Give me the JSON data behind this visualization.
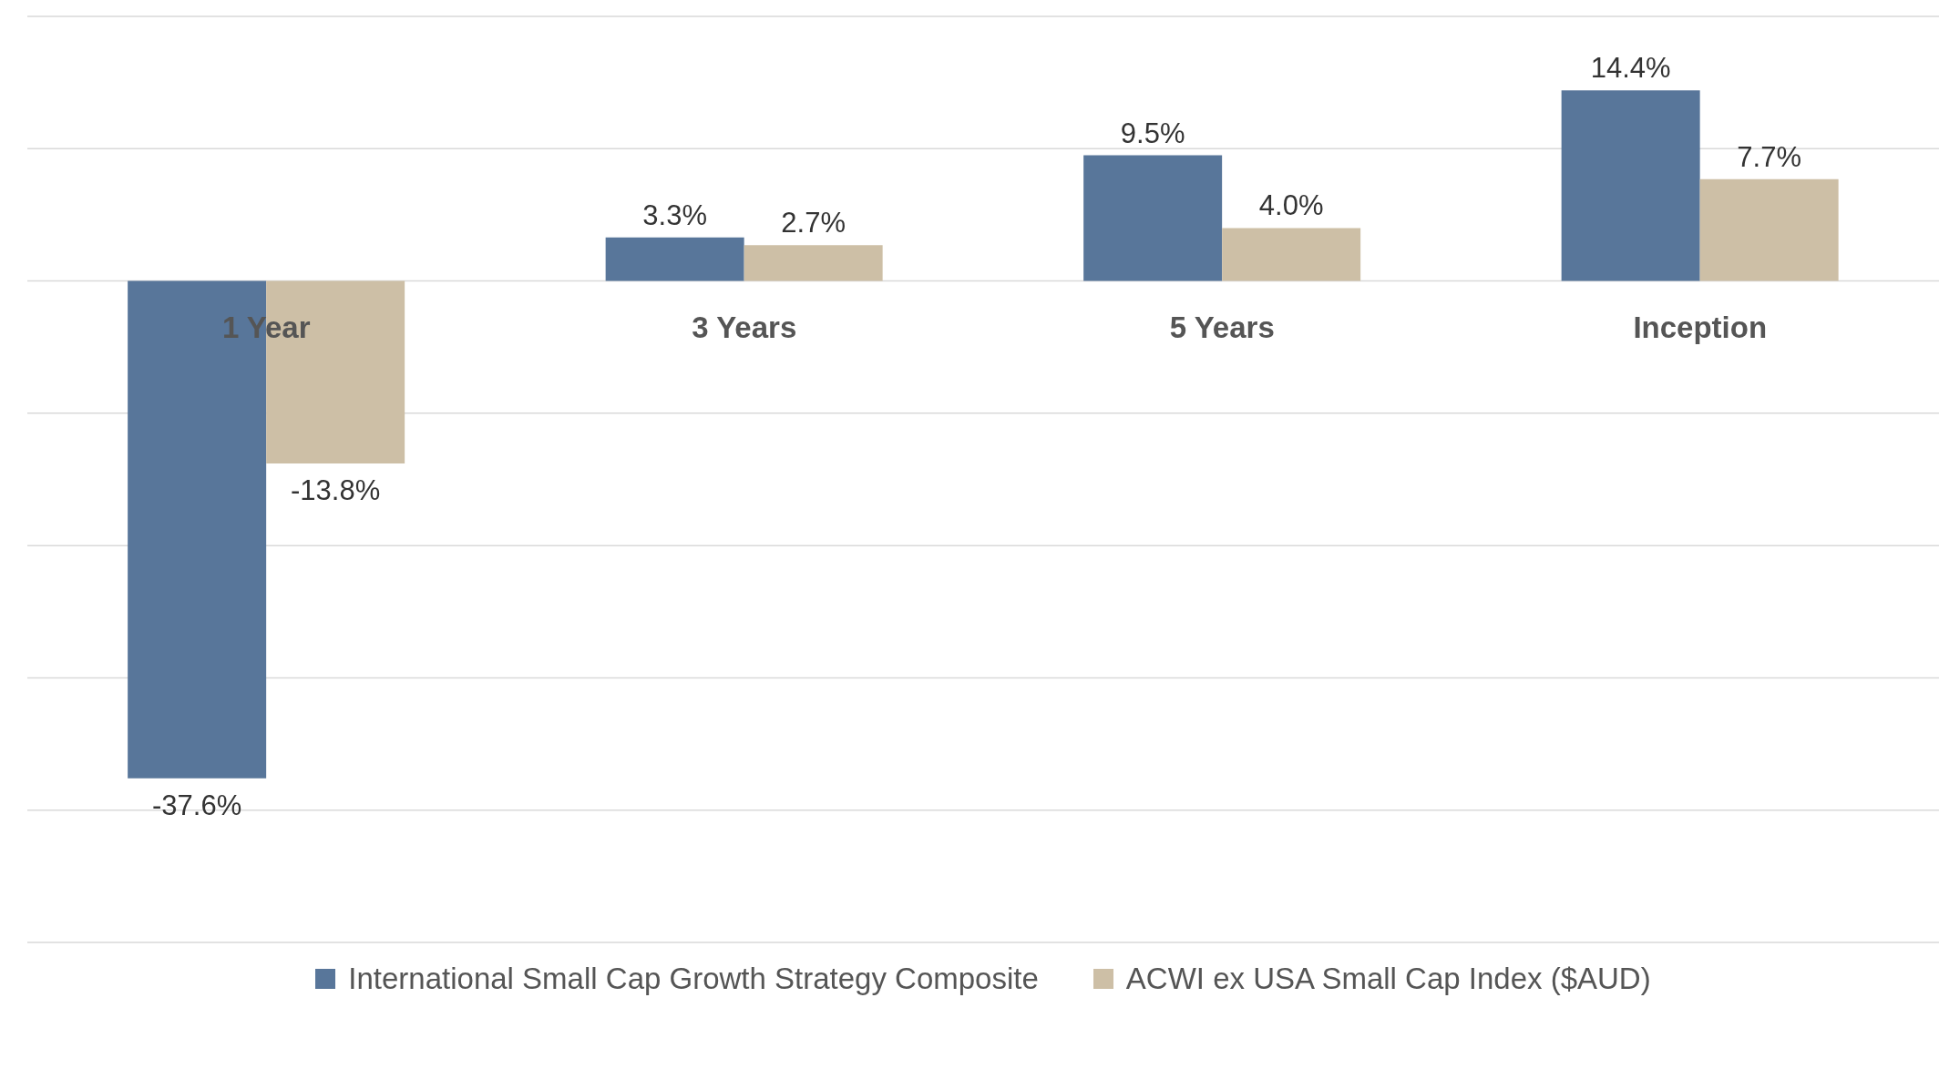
{
  "chart_data": {
    "type": "bar",
    "categories": [
      "1 Year",
      "3 Years",
      "5 Years",
      "Inception"
    ],
    "series": [
      {
        "name": "International Small Cap Growth Strategy Composite",
        "color": "#58769a",
        "values": [
          -37.6,
          3.3,
          9.5,
          14.4
        ],
        "value_labels": [
          "-37.6%",
          "3.3%",
          "9.5%",
          "14.4%"
        ]
      },
      {
        "name": "ACWI ex USA Small Cap Index ($AUD)",
        "color": "#cdbfa6",
        "values": [
          -13.8,
          2.7,
          4.0,
          7.7
        ],
        "value_labels": [
          "-13.8%",
          "2.7%",
          "4.0%",
          "7.7%"
        ]
      }
    ],
    "ylim": [
      -50,
      20
    ],
    "yticks": [
      -50,
      -40,
      -30,
      -20,
      -10,
      0,
      10,
      20
    ],
    "tick_labels": "x",
    "grid": "y",
    "legend": "bottom"
  }
}
